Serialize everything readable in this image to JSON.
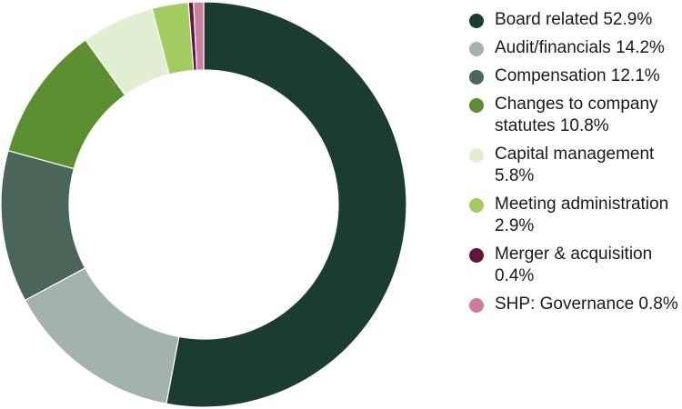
{
  "chart_data": {
    "type": "pie",
    "variant": "donut",
    "title": "",
    "legend_position": "right",
    "categories": [
      "Board related",
      "Audit/financials",
      "Compensation",
      "Changes to company statutes",
      "Capital management",
      "Meeting administration",
      "Merger & acquisition",
      "SHP: Governance"
    ],
    "values": [
      52.9,
      14.2,
      12.1,
      10.8,
      5.8,
      2.9,
      0.4,
      0.8
    ],
    "legend_labels": [
      "Board related 52.9%",
      "Audit/financials 14.2%",
      "Compensation 12.1%",
      "Changes to company statutes 10.8%",
      "Capital management 5.8%",
      "Meeting administration 2.9%",
      "Merger & acquisition 0.4%",
      "SHP: Governance 0.8%"
    ],
    "colors": [
      "#1b3d31",
      "#a3b3ab",
      "#496658",
      "#5b8f2f",
      "#e2eed2",
      "#a1cd60",
      "#61163f",
      "#cc7c9f"
    ]
  }
}
